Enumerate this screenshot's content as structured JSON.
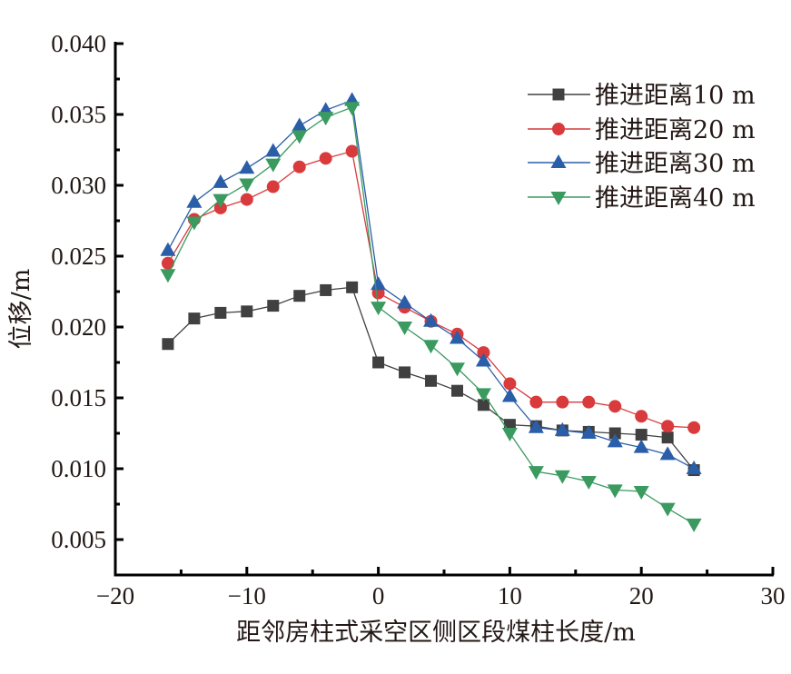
{
  "chart_data": {
    "type": "line",
    "title": "",
    "xlabel": "距邻房柱式采空区侧区段煤柱长度/m",
    "ylabel": "位移/m",
    "xlim": [
      -20,
      30
    ],
    "ylim": [
      0.0025,
      0.04
    ],
    "xticks": [
      -20,
      -10,
      0,
      10,
      20,
      30
    ],
    "xtick_labels": [
      "−20",
      "−10",
      "0",
      "10",
      "20",
      "30"
    ],
    "xminor": [
      -15,
      -5,
      5,
      15,
      25
    ],
    "yticks": [
      0.005,
      0.01,
      0.015,
      0.02,
      0.025,
      0.03,
      0.035,
      0.04
    ],
    "ytick_labels": [
      "0.005",
      "0.010",
      "0.015",
      "0.020",
      "0.025",
      "0.030",
      "0.035",
      "0.040"
    ],
    "yminor": [
      0.0075,
      0.0125,
      0.0175,
      0.0225,
      0.0275,
      0.0325,
      0.0375
    ],
    "grid": false,
    "legend_position": "top-right",
    "x": [
      -16,
      -14,
      -12,
      -10,
      -8,
      -6,
      -4,
      -2,
      0,
      2,
      4,
      6,
      8,
      10,
      12,
      14,
      16,
      18,
      20,
      22,
      24
    ],
    "series": [
      {
        "name": "推进距离10 m",
        "color": "#404040",
        "marker": "square",
        "values": [
          0.0188,
          0.0206,
          0.021,
          0.0211,
          0.0215,
          0.0222,
          0.0226,
          0.0228,
          0.0175,
          0.0168,
          0.0162,
          0.0155,
          0.0145,
          0.0131,
          0.013,
          0.0127,
          0.0126,
          0.0125,
          0.0124,
          0.0122,
          0.0099
        ]
      },
      {
        "name": "推进距离20 m",
        "color": "#d93a3c",
        "marker": "circle",
        "values": [
          0.0245,
          0.0276,
          0.0284,
          0.029,
          0.0299,
          0.0313,
          0.0319,
          0.0324,
          0.0224,
          0.0214,
          0.0204,
          0.0195,
          0.0182,
          0.016,
          0.0147,
          0.0147,
          0.0147,
          0.0144,
          0.0137,
          0.013,
          0.0129
        ]
      },
      {
        "name": "推进距离30 m",
        "color": "#2a5ea8",
        "marker": "triangle-up",
        "values": [
          0.0254,
          0.0288,
          0.0302,
          0.0312,
          0.0324,
          0.0342,
          0.0353,
          0.036,
          0.023,
          0.0217,
          0.0204,
          0.0192,
          0.0176,
          0.0151,
          0.0129,
          0.0127,
          0.0125,
          0.0119,
          0.0115,
          0.011,
          0.01
        ]
      },
      {
        "name": "推进距离40 m",
        "color": "#3a9a60",
        "marker": "triangle-down",
        "values": [
          0.0237,
          0.0274,
          0.029,
          0.0301,
          0.0315,
          0.0335,
          0.0348,
          0.0355,
          0.0214,
          0.02,
          0.0187,
          0.0171,
          0.0153,
          0.0125,
          0.0098,
          0.0095,
          0.0091,
          0.0085,
          0.0084,
          0.0072,
          0.0061
        ]
      }
    ]
  }
}
